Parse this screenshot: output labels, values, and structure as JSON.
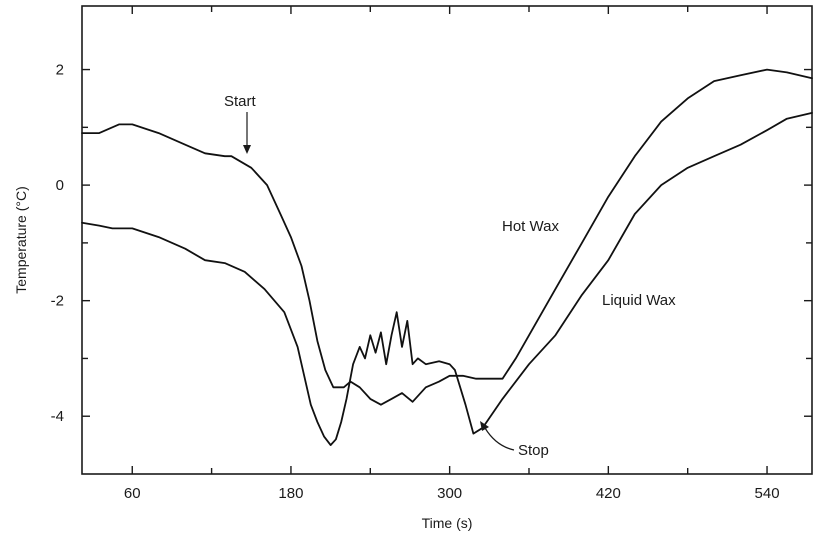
{
  "chart_data": {
    "type": "line",
    "title": "",
    "xlabel": "Time (s)",
    "ylabel": "Temperature (°C)",
    "xlim": [
      22,
      574
    ],
    "ylim": [
      -5.0,
      3.1
    ],
    "x_ticks": [
      60,
      180,
      300,
      420,
      540
    ],
    "x_minor_ticks": [
      120,
      240,
      360,
      480
    ],
    "y_ticks": [
      2,
      0,
      -2,
      -4
    ],
    "y_minor_ticks": [
      1,
      -1,
      -3
    ],
    "grid": false,
    "series": [
      {
        "name": "Hot Wax",
        "points": [
          [
            22,
            0.9
          ],
          [
            35,
            0.9
          ],
          [
            50,
            1.05
          ],
          [
            60,
            1.05
          ],
          [
            80,
            0.9
          ],
          [
            100,
            0.7
          ],
          [
            115,
            0.55
          ],
          [
            130,
            0.5
          ],
          [
            135,
            0.5
          ],
          [
            150,
            0.3
          ],
          [
            162,
            0.0
          ],
          [
            172,
            -0.5
          ],
          [
            180,
            -0.9
          ],
          [
            188,
            -1.4
          ],
          [
            194,
            -2.0
          ],
          [
            200,
            -2.7
          ],
          [
            206,
            -3.2
          ],
          [
            212,
            -3.5
          ],
          [
            220,
            -3.5
          ],
          [
            225,
            -3.4
          ],
          [
            232,
            -3.5
          ],
          [
            240,
            -3.7
          ],
          [
            248,
            -3.8
          ],
          [
            256,
            -3.7
          ],
          [
            264,
            -3.6
          ],
          [
            272,
            -3.75
          ],
          [
            282,
            -3.5
          ],
          [
            292,
            -3.4
          ],
          [
            300,
            -3.3
          ],
          [
            310,
            -3.3
          ],
          [
            320,
            -3.35
          ],
          [
            340,
            -3.35
          ],
          [
            350,
            -3.0
          ],
          [
            360,
            -2.6
          ],
          [
            380,
            -1.8
          ],
          [
            400,
            -1.0
          ],
          [
            420,
            -0.2
          ],
          [
            440,
            0.5
          ],
          [
            460,
            1.1
          ],
          [
            480,
            1.5
          ],
          [
            500,
            1.8
          ],
          [
            520,
            1.9
          ],
          [
            540,
            2.0
          ],
          [
            555,
            1.95
          ],
          [
            574,
            1.85
          ]
        ]
      },
      {
        "name": "Liquid Wax",
        "points": [
          [
            22,
            -0.65
          ],
          [
            35,
            -0.7
          ],
          [
            45,
            -0.75
          ],
          [
            60,
            -0.75
          ],
          [
            80,
            -0.9
          ],
          [
            100,
            -1.1
          ],
          [
            115,
            -1.3
          ],
          [
            130,
            -1.35
          ],
          [
            145,
            -1.5
          ],
          [
            160,
            -1.8
          ],
          [
            175,
            -2.2
          ],
          [
            185,
            -2.8
          ],
          [
            190,
            -3.3
          ],
          [
            195,
            -3.8
          ],
          [
            200,
            -4.1
          ],
          [
            205,
            -4.35
          ],
          [
            210,
            -4.5
          ],
          [
            214,
            -4.4
          ],
          [
            218,
            -4.1
          ],
          [
            222,
            -3.7
          ],
          [
            227,
            -3.1
          ],
          [
            232,
            -2.8
          ],
          [
            236,
            -3.0
          ],
          [
            240,
            -2.6
          ],
          [
            244,
            -2.9
          ],
          [
            248,
            -2.55
          ],
          [
            252,
            -3.1
          ],
          [
            256,
            -2.6
          ],
          [
            260,
            -2.2
          ],
          [
            264,
            -2.8
          ],
          [
            268,
            -2.35
          ],
          [
            272,
            -3.1
          ],
          [
            276,
            -3.0
          ],
          [
            282,
            -3.1
          ],
          [
            292,
            -3.05
          ],
          [
            300,
            -3.1
          ],
          [
            304,
            -3.2
          ],
          [
            312,
            -3.8
          ],
          [
            318,
            -4.3
          ],
          [
            325,
            -4.2
          ],
          [
            340,
            -3.7
          ],
          [
            360,
            -3.1
          ],
          [
            380,
            -2.6
          ],
          [
            400,
            -1.9
          ],
          [
            420,
            -1.3
          ],
          [
            440,
            -0.5
          ],
          [
            460,
            0.0
          ],
          [
            480,
            0.3
          ],
          [
            500,
            0.5
          ],
          [
            520,
            0.7
          ],
          [
            540,
            0.95
          ],
          [
            555,
            1.15
          ],
          [
            574,
            1.25
          ]
        ]
      }
    ],
    "annotations": [
      {
        "text": "Start",
        "x": 130,
        "y": 0.5
      },
      {
        "text": "Stop",
        "x": 325,
        "y": -4.2
      },
      {
        "text": "Hot Wax"
      },
      {
        "text": "Liquid Wax"
      }
    ]
  }
}
